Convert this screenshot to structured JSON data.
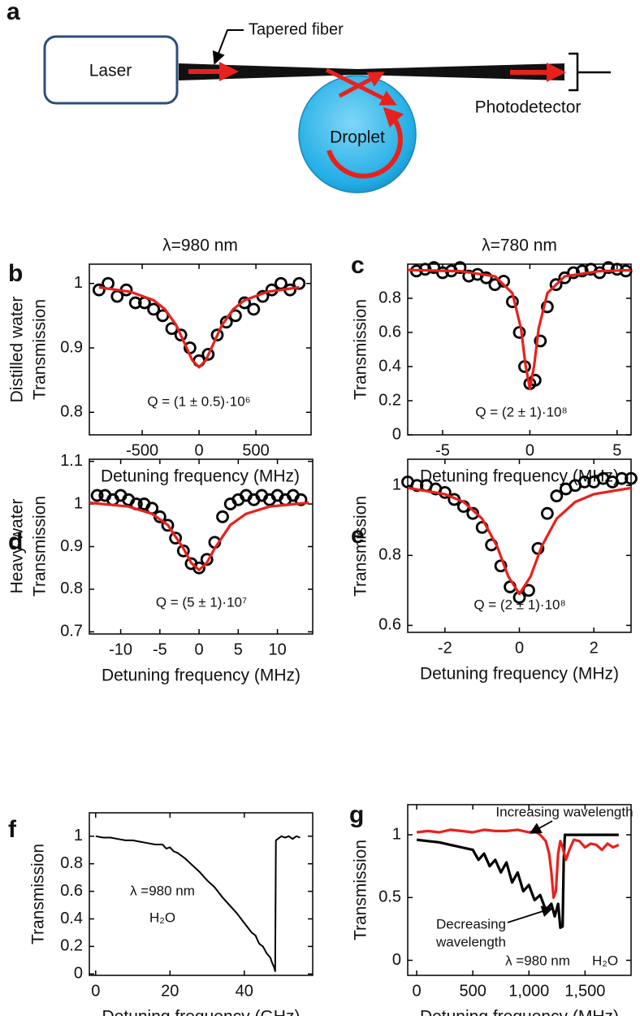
{
  "panel_a": {
    "panel": "a",
    "laser": "Laser",
    "fiber": "Tapered fiber",
    "droplet": "Droplet",
    "detector": "Photodetector"
  },
  "chart_data": [
    {
      "type": "scatter",
      "panel": "b",
      "title": "λ=980 nm",
      "ylabel": [
        "Distilled water",
        "Transmission"
      ],
      "xlabel": "Detuning frequency (MHz)",
      "annotations": [
        "Q = (1 ± 0.5)·10⁶"
      ],
      "xlim": [
        -965,
        985
      ],
      "xticks": [
        -500,
        0,
        500
      ],
      "ylim": [
        0.765,
        1.03
      ],
      "yticks": [
        0.8,
        0.9,
        1
      ],
      "series": [
        {
          "type": "scatter",
          "color": "#000000",
          "x": [
            -880,
            -800,
            -720,
            -640,
            -560,
            -480,
            -400,
            -320,
            -240,
            -160,
            -80,
            0,
            80,
            160,
            240,
            320,
            400,
            480,
            560,
            640,
            720,
            800,
            880
          ],
          "values": [
            0.99,
            1.0,
            0.98,
            0.99,
            0.97,
            0.97,
            0.96,
            0.95,
            0.93,
            0.92,
            0.9,
            0.88,
            0.89,
            0.92,
            0.94,
            0.95,
            0.97,
            0.96,
            0.98,
            0.99,
            1.0,
            0.99,
            1.0
          ]
        },
        {
          "type": "line",
          "color": "#e8211c",
          "x": [
            -880,
            -600,
            -400,
            -300,
            -200,
            -120,
            -60,
            0,
            60,
            120,
            200,
            300,
            400,
            600,
            880
          ],
          "values": [
            0.994,
            0.987,
            0.974,
            0.96,
            0.935,
            0.904,
            0.881,
            0.87,
            0.881,
            0.904,
            0.935,
            0.96,
            0.974,
            0.987,
            0.994
          ]
        }
      ]
    },
    {
      "type": "scatter",
      "panel": "c",
      "title": "λ=780 nm",
      "ylabel": "Transmission",
      "xlabel": "Detuning frequency (MHz)",
      "annotations": [
        "Q = (2 ± 1)·10⁸"
      ],
      "xlim": [
        -7,
        5.8
      ],
      "xticks": [
        -5,
        0,
        5
      ],
      "ylim": [
        0,
        1.0
      ],
      "yticks": [
        0,
        0.2,
        0.4,
        0.6,
        0.8
      ],
      "series": [
        {
          "type": "scatter",
          "color": "#000000",
          "x": [
            -6.5,
            -6,
            -5.5,
            -5,
            -4.5,
            -4,
            -3.5,
            -3,
            -2.5,
            -2,
            -1.5,
            -1,
            -0.6,
            -0.3,
            0,
            0.3,
            0.6,
            1,
            1.5,
            2,
            2.5,
            3,
            3.5,
            4,
            4.5,
            5,
            5.5
          ],
          "values": [
            0.96,
            0.97,
            0.98,
            0.95,
            0.96,
            0.98,
            0.93,
            0.94,
            0.92,
            0.88,
            0.9,
            0.78,
            0.6,
            0.4,
            0.3,
            0.32,
            0.55,
            0.75,
            0.88,
            0.92,
            0.95,
            0.96,
            0.97,
            0.95,
            0.98,
            0.97,
            0.96
          ]
        },
        {
          "type": "line",
          "color": "#e8211c",
          "x": [
            -7,
            -4,
            -2,
            -1,
            -0.5,
            -0.25,
            0,
            0.25,
            0.5,
            1,
            2,
            4,
            5.8
          ],
          "values": [
            0.966,
            0.959,
            0.929,
            0.83,
            0.62,
            0.41,
            0.27,
            0.41,
            0.62,
            0.83,
            0.929,
            0.959,
            0.965
          ]
        }
      ]
    },
    {
      "type": "scatter",
      "panel": "d",
      "ylabel": [
        "Heavy water",
        "Transmission"
      ],
      "xlabel": "Detuning frequency (MHz)",
      "annotations": [
        "Q = (5 ± 1)·10⁷"
      ],
      "xlim": [
        -14,
        14.5
      ],
      "xticks": [
        -10,
        -5,
        0,
        5,
        10
      ],
      "ylim": [
        0.695,
        1.105
      ],
      "yticks": [
        0.7,
        0.8,
        0.9,
        1,
        1.1
      ],
      "series": [
        {
          "type": "scatter",
          "color": "#000000",
          "x": [
            -13,
            -12,
            -11,
            -10,
            -9,
            -8,
            -7,
            -6,
            -5,
            -4,
            -3,
            -2,
            -1,
            0,
            1,
            2,
            3,
            4,
            5,
            6,
            7,
            8,
            9,
            10,
            11,
            12,
            13
          ],
          "values": [
            1.02,
            1.02,
            1.01,
            1.02,
            1.01,
            1.0,
            1.0,
            0.99,
            0.97,
            0.95,
            0.92,
            0.89,
            0.86,
            0.85,
            0.87,
            0.91,
            0.97,
            1.0,
            1.01,
            1.02,
            1.01,
            1.02,
            1.01,
            1.02,
            1.01,
            1.02,
            1.01
          ]
        },
        {
          "type": "line",
          "color": "#e8211c",
          "x": [
            -14,
            -9,
            -6,
            -4,
            -2,
            -1,
            0,
            1,
            2,
            4,
            6,
            9,
            14
          ],
          "values": [
            1.003,
            0.994,
            0.977,
            0.951,
            0.896,
            0.862,
            0.845,
            0.862,
            0.896,
            0.951,
            0.977,
            0.994,
            1.003
          ]
        }
      ]
    },
    {
      "type": "scatter",
      "panel": "e",
      "ylabel": "Transmission",
      "xlabel": "Detuning frequency (MHz)",
      "annotations": [
        "Q = (2 ± 1)·10⁸"
      ],
      "xlim": [
        -3,
        3
      ],
      "xticks": [
        -2,
        0,
        2
      ],
      "ylim": [
        0.58,
        1.075
      ],
      "yticks": [
        0.6,
        0.8,
        1
      ],
      "series": [
        {
          "type": "scatter",
          "color": "#000000",
          "x": [
            -3,
            -2.75,
            -2.5,
            -2.25,
            -2,
            -1.75,
            -1.5,
            -1.25,
            -1,
            -0.75,
            -0.5,
            -0.25,
            0,
            0.25,
            0.5,
            0.75,
            1,
            1.25,
            1.5,
            1.75,
            2,
            2.25,
            2.5,
            2.75,
            3
          ],
          "values": [
            1.01,
            1.0,
            1.0,
            0.99,
            0.98,
            0.96,
            0.94,
            0.92,
            0.88,
            0.83,
            0.77,
            0.71,
            0.68,
            0.7,
            0.82,
            0.92,
            0.97,
            0.99,
            1.0,
            1.01,
            1.01,
            1.02,
            1.01,
            1.02,
            1.02
          ]
        },
        {
          "type": "line",
          "color": "#e8211c",
          "x": [
            -3,
            -2,
            -1.5,
            -1,
            -0.6,
            -0.3,
            0,
            0.3,
            0.6,
            1,
            1.5,
            2,
            3
          ],
          "values": [
            0.993,
            0.975,
            0.953,
            0.905,
            0.826,
            0.74,
            0.69,
            0.74,
            0.826,
            0.905,
            0.953,
            0.975,
            0.993
          ]
        }
      ]
    },
    {
      "type": "line",
      "panel": "f",
      "ylabel": "Transmission",
      "xlabel": "Detuning frequency (GHz)",
      "annotations": [
        "λ =980 nm",
        "H₂O"
      ],
      "xlim": [
        -1.7,
        58.4
      ],
      "xticks": [
        0,
        20,
        40
      ],
      "ylim": [
        -0.01,
        1.17
      ],
      "yticks": [
        0,
        0.2,
        0.4,
        0.6,
        0.8,
        1
      ],
      "series": [
        {
          "type": "line",
          "color": "#000000",
          "x": [
            0,
            2,
            4,
            6,
            8,
            10,
            12,
            14,
            16,
            18,
            19,
            20,
            21,
            22,
            24,
            26,
            28,
            30,
            32,
            34,
            36,
            38,
            40,
            42,
            43,
            44,
            45,
            46,
            47,
            47.5,
            48,
            48.3,
            48.5,
            49,
            50,
            51,
            52,
            53,
            54,
            55
          ],
          "values": [
            1.0,
            0.99,
            0.99,
            0.98,
            0.97,
            0.97,
            0.96,
            0.95,
            0.94,
            0.94,
            0.91,
            0.92,
            0.89,
            0.88,
            0.84,
            0.79,
            0.74,
            0.68,
            0.63,
            0.56,
            0.5,
            0.44,
            0.37,
            0.3,
            0.28,
            0.22,
            0.2,
            0.15,
            0.12,
            0.08,
            0.05,
            0.02,
            0.97,
            0.98,
            1.0,
            0.99,
            1.0,
            0.98,
            1.0,
            0.99
          ]
        }
      ]
    },
    {
      "type": "line",
      "panel": "g",
      "ylabel": "Transmission",
      "xlabel": "Detuning frequency (MHz)",
      "annotations": [
        "Increasing wavelength",
        "Decreasing",
        "wavelength",
        "λ =980 nm",
        "H₂O"
      ],
      "xlim": [
        -80,
        1910
      ],
      "xticks": [
        0,
        500,
        {
          "value": 1000,
          "label": "1,000"
        },
        {
          "value": 1500,
          "label": "1,500"
        }
      ],
      "ylim": [
        -0.12,
        1.24
      ],
      "yticks": [
        0,
        0.5,
        1
      ],
      "series": [
        {
          "type": "line",
          "color": "#000000",
          "x": [
            0,
            100,
            200,
            300,
            400,
            500,
            550,
            600,
            650,
            700,
            750,
            800,
            850,
            900,
            950,
            1000,
            1050,
            1100,
            1150,
            1200,
            1230,
            1260,
            1280,
            1300,
            1310,
            1320,
            1400,
            1500,
            1600,
            1700,
            1800
          ],
          "values": [
            0.96,
            0.95,
            0.94,
            0.92,
            0.9,
            0.88,
            0.8,
            0.85,
            0.75,
            0.8,
            0.7,
            0.78,
            0.62,
            0.7,
            0.55,
            0.6,
            0.48,
            0.52,
            0.4,
            0.45,
            0.35,
            0.45,
            0.26,
            0.27,
            0.8,
            1.0,
            1.0,
            1.0,
            1.0,
            1.0,
            1.0
          ]
        },
        {
          "type": "line",
          "color": "#e8211c",
          "x": [
            0,
            100,
            200,
            300,
            400,
            500,
            600,
            700,
            800,
            900,
            1000,
            1050,
            1100,
            1150,
            1180,
            1200,
            1220,
            1240,
            1260,
            1280,
            1300,
            1330,
            1360,
            1400,
            1450,
            1500,
            1550,
            1600,
            1650,
            1700,
            1750,
            1800
          ],
          "values": [
            1.02,
            1.03,
            1.02,
            1.04,
            1.03,
            1.02,
            1.04,
            1.03,
            1.03,
            1.04,
            1.02,
            1.03,
            1.0,
            0.95,
            0.85,
            0.7,
            0.5,
            0.55,
            0.85,
            0.95,
            0.9,
            0.8,
            0.88,
            0.96,
            0.95,
            0.9,
            0.93,
            0.92,
            0.88,
            0.93,
            0.9,
            0.92
          ]
        }
      ]
    }
  ]
}
